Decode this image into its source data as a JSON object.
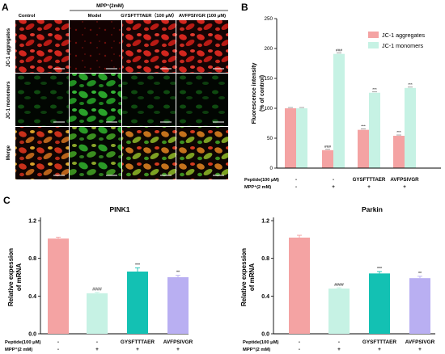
{
  "panelA": {
    "label": "A",
    "header": {
      "mpp_label": "MPP⁺(2mM)",
      "col_control": "Control",
      "col_model": "Model",
      "col_gys": "GYSFTTTAER（100 μM）",
      "col_avf": "AVFPSIVGR (100 μM)"
    },
    "rows": [
      "JC-1 aggregates",
      "JC-1 monomers",
      "Merge"
    ],
    "colors": {
      "red_channel": "#d3261e",
      "green_channel": "#2aa22a",
      "dark": "#140404"
    }
  },
  "chart_data": [
    {
      "id": "B",
      "label": "B",
      "type": "bar",
      "ylabel": "Fluorescence intensity\n(% of control)",
      "ylim": [
        0,
        250
      ],
      "yticks": [
        0,
        50,
        100,
        150,
        200,
        250
      ],
      "series": [
        {
          "name": "JC-1 aggregates",
          "color": "#f4a3a3",
          "values": [
            100,
            30,
            64,
            54
          ],
          "marks": [
            "",
            "###",
            "***",
            "***"
          ]
        },
        {
          "name": "JC-1 monomers",
          "color": "#c6f2e4",
          "values": [
            100,
            191,
            126,
            134
          ],
          "marks": [
            "",
            "###",
            "***",
            "***"
          ]
        }
      ],
      "legend": "top-right",
      "conditions": {
        "row1_label": "Peptide(100 μM)",
        "row2_label": "MPP⁺(2 mM)",
        "row1": [
          "-",
          "-",
          "GYSFTTTAER",
          "AVFPSIVGR"
        ],
        "row2": [
          "-",
          "+",
          "+",
          "+"
        ]
      }
    },
    {
      "id": "C1",
      "label": "C",
      "type": "bar",
      "title": "PINK1",
      "ylabel": "Relative expession\nof mRNA",
      "ylim": [
        0,
        1.2
      ],
      "yticks": [
        "0.0",
        "0.4",
        "0.8",
        "1.2"
      ],
      "values": [
        1.01,
        0.43,
        0.66,
        0.6
      ],
      "errors": [
        0.015,
        0.01,
        0.04,
        0.02
      ],
      "colors": [
        "#f4a3a3",
        "#c6f2e4",
        "#13c1b3",
        "#b9aff2"
      ],
      "marks": [
        "",
        "####",
        "***",
        "**"
      ],
      "conditions": {
        "row1_label": "Peptide(100 μM)",
        "row2_label": "MPP⁺(2 mM)",
        "row1": [
          "-",
          "-",
          "GYSFTTTAER",
          "AVFPSIVGR"
        ],
        "row2": [
          "-",
          "+",
          "+",
          "+"
        ]
      }
    },
    {
      "id": "C2",
      "type": "bar",
      "title": "Parkin",
      "ylabel": "Relative expession\nof mRNA",
      "ylim": [
        0,
        1.2
      ],
      "yticks": [
        "0.0",
        "0.4",
        "0.8",
        "1.2"
      ],
      "values": [
        1.02,
        0.48,
        0.64,
        0.59
      ],
      "errors": [
        0.025,
        0.008,
        0.02,
        0.02
      ],
      "colors": [
        "#f4a3a3",
        "#c6f2e4",
        "#13c1b3",
        "#b9aff2"
      ],
      "marks": [
        "",
        "####",
        "***",
        "**"
      ],
      "conditions": {
        "row1_label": "Peptide(100 μM)",
        "row2_label": "MPP⁺(2 mM)",
        "row1": [
          "-",
          "-",
          "GYSFTTTAER",
          "AVFPSIVGR"
        ],
        "row2": [
          "-",
          "+",
          "+",
          "+"
        ]
      }
    }
  ]
}
